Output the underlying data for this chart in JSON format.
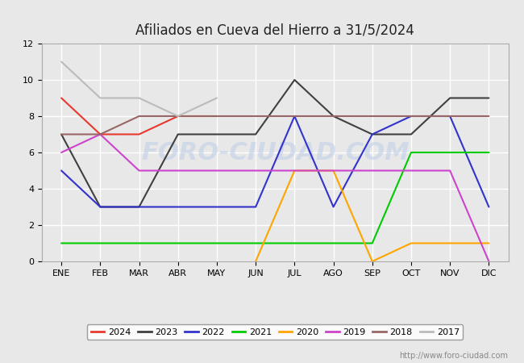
{
  "title": "Afiliados en Cueva del Hierro a 31/5/2024",
  "title_fontsize": 12,
  "months": [
    "ENE",
    "FEB",
    "MAR",
    "ABR",
    "MAY",
    "JUN",
    "JUL",
    "AGO",
    "SEP",
    "OCT",
    "NOV",
    "DIC"
  ],
  "watermark": "http://www.foro-ciudad.com",
  "series": {
    "2024": {
      "color": "#e8392e",
      "data": [
        9,
        7,
        7,
        8,
        8,
        null,
        null,
        null,
        null,
        null,
        null,
        null
      ]
    },
    "2023": {
      "color": "#404040",
      "data": [
        7,
        3,
        3,
        7,
        7,
        7,
        10,
        8,
        7,
        7,
        9,
        9
      ]
    },
    "2022": {
      "color": "#3333cc",
      "data": [
        5,
        3,
        3,
        3,
        3,
        3,
        8,
        3,
        7,
        8,
        8,
        3
      ]
    },
    "2021": {
      "color": "#00cc00",
      "data": [
        1,
        1,
        1,
        1,
        1,
        1,
        1,
        1,
        1,
        6,
        6,
        6
      ]
    },
    "2020": {
      "color": "#ffa500",
      "data": [
        null,
        null,
        null,
        null,
        null,
        0,
        5,
        5,
        0,
        1,
        1,
        1
      ]
    },
    "2019": {
      "color": "#cc44cc",
      "data": [
        6,
        7,
        5,
        5,
        5,
        5,
        5,
        5,
        5,
        5,
        5,
        0
      ]
    },
    "2018": {
      "color": "#996666",
      "data": [
        7,
        7,
        8,
        8,
        8,
        8,
        8,
        8,
        8,
        8,
        8,
        8
      ]
    },
    "2017": {
      "color": "#bbbbbb",
      "data": [
        11,
        9,
        9,
        8,
        9,
        null,
        null,
        null,
        null,
        null,
        null,
        null
      ]
    }
  },
  "ylim": [
    0,
    12
  ],
  "yticks": [
    0,
    2,
    4,
    6,
    8,
    10,
    12
  ],
  "background_color": "#e8e8e8",
  "plot_bg_color": "#e8e8e8",
  "grid_color": "#ffffff",
  "legend_order": [
    "2024",
    "2023",
    "2022",
    "2021",
    "2020",
    "2019",
    "2018",
    "2017"
  ],
  "watermark_chart_text": "FORO-CIUDAD.COM",
  "watermark_chart_color": "#c0cfe8",
  "watermark_chart_alpha": 0.6
}
